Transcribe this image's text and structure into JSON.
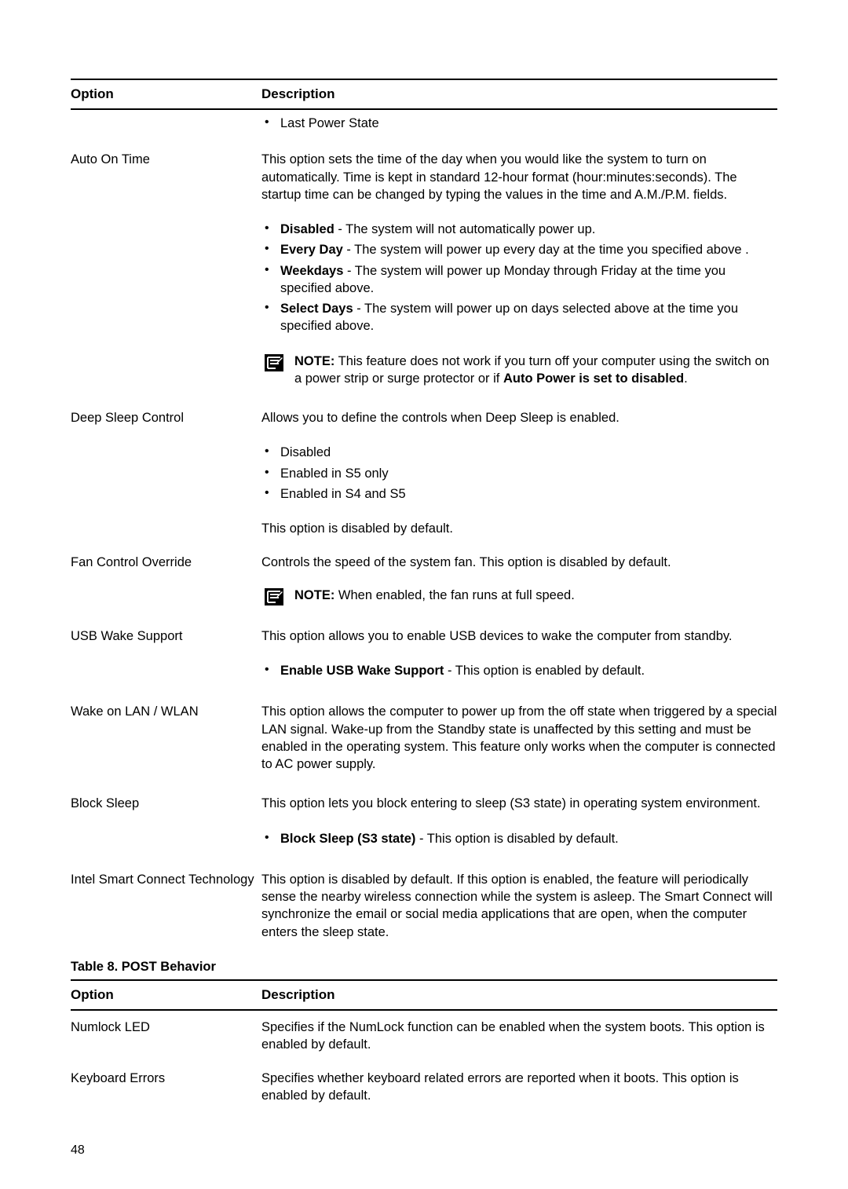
{
  "table7": {
    "header": {
      "option": "Option",
      "description": "Description"
    },
    "last_power_state": "Last Power State",
    "auto_on_time": {
      "label": "Auto On Time",
      "intro": "This option sets the time of the day when you would like the system to turn on automatically. Time is kept in standard 12-hour format (hour:minutes:seconds). The startup time can be changed by typing the values in the time and A.M./P.M. fields.",
      "items": [
        {
          "b": "Disabled",
          "t": " - The system will not automatically power up."
        },
        {
          "b": "Every Day",
          "t": " - The system will power up every day at the time you specified above ."
        },
        {
          "b": "Weekdays",
          "t": " - The system will power up Monday through Friday at the time you specified above."
        },
        {
          "b": "Select Days",
          "t": " - The system will power up on days selected above at the time you specified above."
        }
      ],
      "note": {
        "b": "NOTE:",
        "t1": " This feature does not work if you turn off your computer using the switch on a power strip or surge protector or if ",
        "b2": "Auto Power is set to disabled",
        "t2": "."
      }
    },
    "deep_sleep": {
      "label": "Deep Sleep Control",
      "intro": "Allows you to define the controls when Deep Sleep is enabled.",
      "items": [
        "Disabled",
        "Enabled in S5 only",
        "Enabled in S4 and S5"
      ],
      "footer": "This option is disabled by default."
    },
    "fan": {
      "label": "Fan Control Override",
      "intro": "Controls the speed of the system fan. This option is disabled by default.",
      "note": {
        "b": "NOTE:",
        "t": " When enabled, the fan runs at full speed."
      }
    },
    "usb_wake": {
      "label": "USB Wake Support",
      "intro": "This option allows you to enable USB devices to wake the computer from standby.",
      "item": {
        "b": "Enable USB Wake Support",
        "t": " - This option is enabled by default."
      }
    },
    "wake_lan": {
      "label": "Wake on LAN / WLAN",
      "desc": "This option allows the computer to power up from the off state when triggered by a special LAN signal. Wake-up from the Standby state is unaffected by this setting and must be enabled in the operating system. This feature only works when the computer is connected to AC power supply."
    },
    "block_sleep": {
      "label": "Block Sleep",
      "intro": "This option lets you block entering to sleep (S3 state) in operating system environment.",
      "item": {
        "b": "Block Sleep (S3 state)",
        "t": " - This option is disabled by default."
      }
    },
    "smart_connect": {
      "label": "Intel Smart Connect Technology",
      "desc": "This option is disabled by default. If this option is enabled, the feature will periodically sense the nearby wireless connection while the system is asleep. The Smart Connect will synchronize the email or social media applications that are open, when the computer enters the sleep state."
    }
  },
  "table8": {
    "title": "Table 8. POST Behavior",
    "header": {
      "option": "Option",
      "description": "Description"
    },
    "numlock": {
      "label": "Numlock LED",
      "desc": "Specifies if the NumLock function can be enabled when the system boots. This option is enabled by default."
    },
    "keyboard_errors": {
      "label": "Keyboard Errors",
      "desc": "Specifies whether keyboard related errors are reported when it boots. This option is enabled by default."
    }
  },
  "page_number": "48"
}
